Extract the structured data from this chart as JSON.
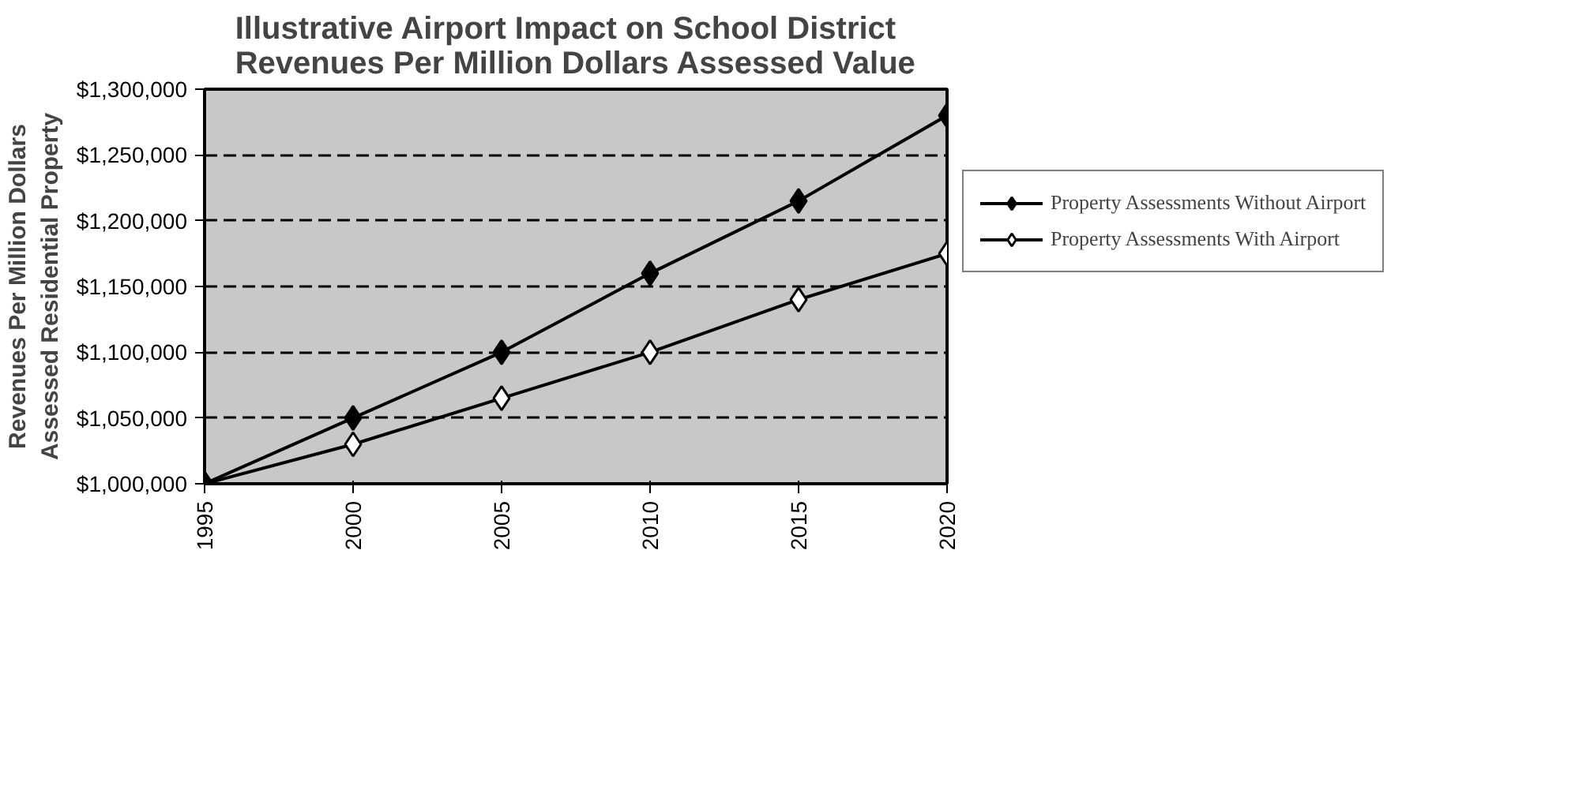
{
  "chart_data": {
    "type": "line",
    "title": "Illustrative Airport Impact on School District\nRevenues Per Million Dollars Assessed Value",
    "ylabel": "Revenues Per Million Dollars\nAssessed Residential Property",
    "x": [
      1995,
      2000,
      2005,
      2010,
      2015,
      2020
    ],
    "xlim": [
      1995,
      2020
    ],
    "xticks": [
      1995,
      2000,
      2005,
      2010,
      2015,
      2020
    ],
    "ylim": [
      1000000,
      1300000
    ],
    "yticks": [
      {
        "value": 1000000,
        "label": "$1,000,000"
      },
      {
        "value": 1050000,
        "label": "$1,050,000"
      },
      {
        "value": 1100000,
        "label": "$1,100,000"
      },
      {
        "value": 1150000,
        "label": "$1,150,000"
      },
      {
        "value": 1200000,
        "label": "$1,200,000"
      },
      {
        "value": 1250000,
        "label": "$1,250,000"
      },
      {
        "value": 1300000,
        "label": "$1,300,000"
      }
    ],
    "series": [
      {
        "name": "Property Assessments Without Airport",
        "color": "#000000",
        "values": [
          1000000,
          1050000,
          1100000,
          1160000,
          1215000,
          1280000
        ]
      },
      {
        "name": "Property Assessments With Airport",
        "color": "#000000",
        "values": [
          1000000,
          1030000,
          1065000,
          1100000,
          1140000,
          1175000
        ]
      }
    ],
    "marker": "diamond",
    "line_style": "solid",
    "grid": "y",
    "legend": "right"
  }
}
